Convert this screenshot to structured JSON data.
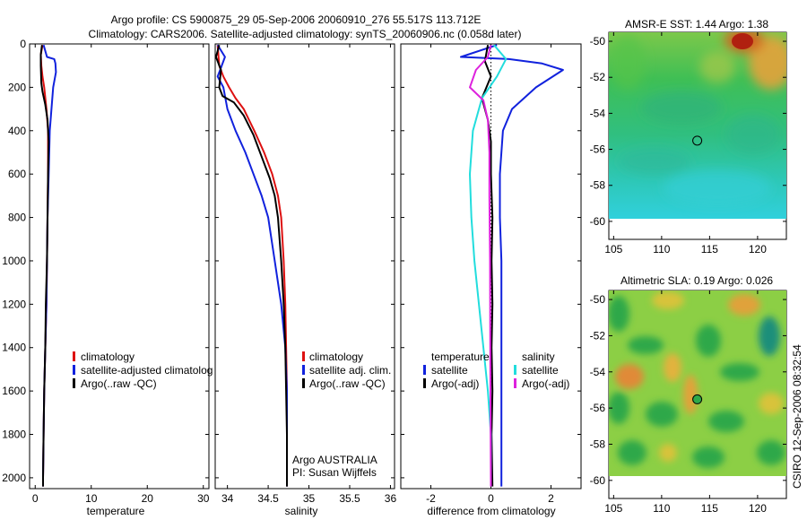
{
  "header": {
    "title_line1": "Argo profile: CS 5900875_29 05-Sep-2006 20060910_276 55.517S 113.712E",
    "title_line2": "Climatology: CARS2006. Satellite-adjusted climatology: synTS_20060906.nc (0.058d later)"
  },
  "colors": {
    "climatology": "#dd1111",
    "satellite": "#1122dd",
    "argo": "#000000",
    "satellite_salinity": "#22dddd",
    "argo_salinity": "#dd22dd"
  },
  "side_text": "CSIRO 12-Sep-2006 08:32:54",
  "chart_data": [
    {
      "type": "line",
      "panel": "temperature",
      "xlabel": "temperature",
      "ylabel": "",
      "xlim": [
        -1,
        31
      ],
      "ylim": [
        2050,
        0
      ],
      "xticks": [
        0,
        10,
        20,
        30
      ],
      "yticks": [
        0,
        200,
        400,
        600,
        800,
        1000,
        1200,
        1400,
        1600,
        1800,
        2000
      ],
      "legend": [
        "climatology",
        "satellite-adjusted climatolog",
        "Argo(..raw -QC)"
      ],
      "series": [
        {
          "name": "climatology",
          "color_key": "climatology",
          "points": [
            [
              1.3,
              5
            ],
            [
              1.0,
              50
            ],
            [
              1.1,
              100
            ],
            [
              1.3,
              150
            ],
            [
              1.6,
              200
            ],
            [
              2.0,
              300
            ],
            [
              2.3,
              400
            ],
            [
              2.3,
              600
            ],
            [
              2.2,
              800
            ],
            [
              2.1,
              1000
            ],
            [
              2.0,
              1200
            ],
            [
              1.8,
              1400
            ],
            [
              1.6,
              1600
            ],
            [
              1.5,
              1800
            ],
            [
              1.4,
              2000
            ],
            [
              1.4,
              2040
            ]
          ]
        },
        {
          "name": "satellite-adjusted climatolog",
          "color_key": "satellite",
          "points": [
            [
              1.5,
              5
            ],
            [
              2.1,
              60
            ],
            [
              3.4,
              70
            ],
            [
              3.6,
              90
            ],
            [
              3.7,
              130
            ],
            [
              3.2,
              200
            ],
            [
              2.9,
              300
            ],
            [
              2.6,
              400
            ],
            [
              2.4,
              600
            ],
            [
              2.2,
              800
            ],
            [
              2.1,
              1000
            ],
            [
              2.0,
              1200
            ],
            [
              1.8,
              1400
            ],
            [
              1.6,
              1600
            ],
            [
              1.5,
              1800
            ],
            [
              1.4,
              2000
            ],
            [
              1.4,
              2040
            ]
          ]
        },
        {
          "name": "Argo(..raw -QC)",
          "color_key": "argo",
          "points": [
            [
              1.2,
              5
            ],
            [
              1.0,
              50
            ],
            [
              1.0,
              100
            ],
            [
              1.1,
              180
            ],
            [
              1.3,
              220
            ],
            [
              1.8,
              280
            ],
            [
              2.2,
              350
            ],
            [
              2.4,
              450
            ],
            [
              2.3,
              600
            ],
            [
              2.2,
              800
            ],
            [
              2.1,
              1000
            ],
            [
              1.9,
              1200
            ],
            [
              1.8,
              1400
            ],
            [
              1.6,
              1600
            ],
            [
              1.5,
              1800
            ],
            [
              1.4,
              2000
            ],
            [
              1.4,
              2040
            ]
          ]
        }
      ]
    },
    {
      "type": "line",
      "panel": "salinity",
      "xlabel": "salinity",
      "ylabel": "",
      "xlim": [
        33.85,
        36.05
      ],
      "ylim": [
        2050,
        0
      ],
      "xticks": [
        34,
        34.5,
        35,
        35.5,
        36
      ],
      "xtick_labels": [
        "34",
        "34.5",
        "35",
        "35.5",
        "36"
      ],
      "legend": [
        "climatology",
        "satellite adj. clim.",
        "Argo(..raw -QC)"
      ],
      "annotation_lines": [
        "Argo AUSTRALIA",
        "PI: Susan Wijffels"
      ],
      "series": [
        {
          "name": "climatology",
          "color_key": "climatology",
          "points": [
            [
              33.88,
              5
            ],
            [
              33.9,
              100
            ],
            [
              33.95,
              150
            ],
            [
              34.02,
              200
            ],
            [
              34.1,
              250
            ],
            [
              34.2,
              300
            ],
            [
              34.33,
              400
            ],
            [
              34.45,
              500
            ],
            [
              34.55,
              600
            ],
            [
              34.62,
              700
            ],
            [
              34.66,
              800
            ],
            [
              34.69,
              1000
            ],
            [
              34.71,
              1200
            ],
            [
              34.72,
              1400
            ],
            [
              34.73,
              1600
            ],
            [
              34.73,
              1800
            ],
            [
              34.73,
              2040
            ]
          ]
        },
        {
          "name": "satellite adj. clim.",
          "color_key": "satellite",
          "points": [
            [
              33.88,
              5
            ],
            [
              33.97,
              60
            ],
            [
              33.92,
              110
            ],
            [
              33.88,
              150
            ],
            [
              33.95,
              200
            ],
            [
              34.0,
              300
            ],
            [
              34.1,
              400
            ],
            [
              34.22,
              500
            ],
            [
              34.32,
              600
            ],
            [
              34.42,
              700
            ],
            [
              34.5,
              800
            ],
            [
              34.58,
              1000
            ],
            [
              34.66,
              1200
            ],
            [
              34.71,
              1400
            ],
            [
              34.73,
              1600
            ],
            [
              34.73,
              1800
            ],
            [
              34.73,
              2040
            ]
          ]
        },
        {
          "name": "Argo(..raw -QC)",
          "color_key": "argo",
          "points": [
            [
              33.9,
              5
            ],
            [
              33.86,
              60
            ],
            [
              33.92,
              120
            ],
            [
              33.9,
              200
            ],
            [
              33.94,
              240
            ],
            [
              34.08,
              270
            ],
            [
              34.2,
              330
            ],
            [
              34.32,
              420
            ],
            [
              34.42,
              520
            ],
            [
              34.52,
              620
            ],
            [
              34.58,
              700
            ],
            [
              34.62,
              800
            ],
            [
              34.66,
              1000
            ],
            [
              34.69,
              1200
            ],
            [
              34.71,
              1400
            ],
            [
              34.72,
              1600
            ],
            [
              34.73,
              1800
            ],
            [
              34.73,
              2040
            ]
          ]
        }
      ]
    },
    {
      "type": "line",
      "panel": "difference",
      "xlabel": "difference from climatology",
      "ylabel": "",
      "xlim": [
        -3,
        3
      ],
      "ylim": [
        2050,
        0
      ],
      "xticks": [
        -2,
        0,
        2
      ],
      "legend_left_title": "temperature",
      "legend_right_title": "salinity",
      "legend_left": [
        "satellite",
        "Argo(-adj)"
      ],
      "legend_right": [
        "satellite",
        "Argo(-adj)"
      ],
      "series": [
        {
          "name": "satellite",
          "group": "temperature",
          "color_key": "satellite",
          "points": [
            [
              0.2,
              5
            ],
            [
              -1.0,
              60
            ],
            [
              0.6,
              70
            ],
            [
              1.7,
              90
            ],
            [
              2.4,
              120
            ],
            [
              1.5,
              200
            ],
            [
              0.7,
              300
            ],
            [
              0.4,
              400
            ],
            [
              0.3,
              600
            ],
            [
              0.3,
              800
            ],
            [
              0.35,
              1000
            ],
            [
              0.35,
              1200
            ],
            [
              0.35,
              1400
            ],
            [
              0.35,
              1600
            ],
            [
              0.35,
              1800
            ],
            [
              0.35,
              2040
            ]
          ]
        },
        {
          "name": "Argo(-adj)",
          "group": "temperature",
          "color_key": "argo",
          "points": [
            [
              -0.1,
              5
            ],
            [
              -0.2,
              80
            ],
            [
              0,
              150
            ],
            [
              -0.3,
              250
            ],
            [
              -0.1,
              350
            ],
            [
              0,
              450
            ],
            [
              0,
              600
            ],
            [
              0.05,
              800
            ],
            [
              0.02,
              1000
            ],
            [
              0.05,
              1200
            ],
            [
              0.02,
              1400
            ],
            [
              0.05,
              1600
            ],
            [
              0.02,
              1800
            ],
            [
              0.05,
              2040
            ]
          ]
        },
        {
          "name": "satellite",
          "group": "salinity",
          "color_key": "satellite_salinity",
          "points": [
            [
              0.1,
              5
            ],
            [
              0.5,
              70
            ],
            [
              0.2,
              150
            ],
            [
              -0.3,
              250
            ],
            [
              -0.6,
              400
            ],
            [
              -0.7,
              600
            ],
            [
              -0.65,
              800
            ],
            [
              -0.55,
              1000
            ],
            [
              -0.4,
              1200
            ],
            [
              -0.25,
              1400
            ],
            [
              -0.1,
              1600
            ],
            [
              0,
              1800
            ],
            [
              0,
              2040
            ]
          ]
        },
        {
          "name": "Argo(-adj)",
          "group": "salinity",
          "color_key": "argo_salinity",
          "points": [
            [
              0,
              5
            ],
            [
              -0.1,
              60
            ],
            [
              -0.5,
              120
            ],
            [
              -0.7,
              200
            ],
            [
              -0.25,
              260
            ],
            [
              -0.1,
              350
            ],
            [
              -0.05,
              500
            ],
            [
              -0.05,
              700
            ],
            [
              -0.03,
              1000
            ],
            [
              -0.02,
              1400
            ],
            [
              -0.01,
              1800
            ],
            [
              0,
              2040
            ]
          ]
        }
      ]
    },
    {
      "type": "heatmap",
      "panel": "amsr_sst",
      "title": "AMSR-E SST: 1.44 Argo: 1.38",
      "xlim": [
        104.5,
        123
      ],
      "ylim": [
        -61,
        -49.5
      ],
      "xticks": [
        105,
        110,
        115,
        120
      ],
      "yticks": [
        -50,
        -52,
        -54,
        -56,
        -58,
        -60
      ],
      "marker": {
        "lon": 113.712,
        "lat": -55.517
      }
    },
    {
      "type": "heatmap",
      "panel": "altimetric_sla",
      "title": "Altimetric SLA: 0.19 Argo: 0.026",
      "xlim": [
        104.5,
        123
      ],
      "ylim": [
        -61,
        -49.5
      ],
      "xticks": [
        105,
        110,
        115,
        120
      ],
      "yticks": [
        -50,
        -52,
        -54,
        -56,
        -58,
        -60
      ],
      "marker": {
        "lon": 113.712,
        "lat": -55.517
      }
    }
  ]
}
